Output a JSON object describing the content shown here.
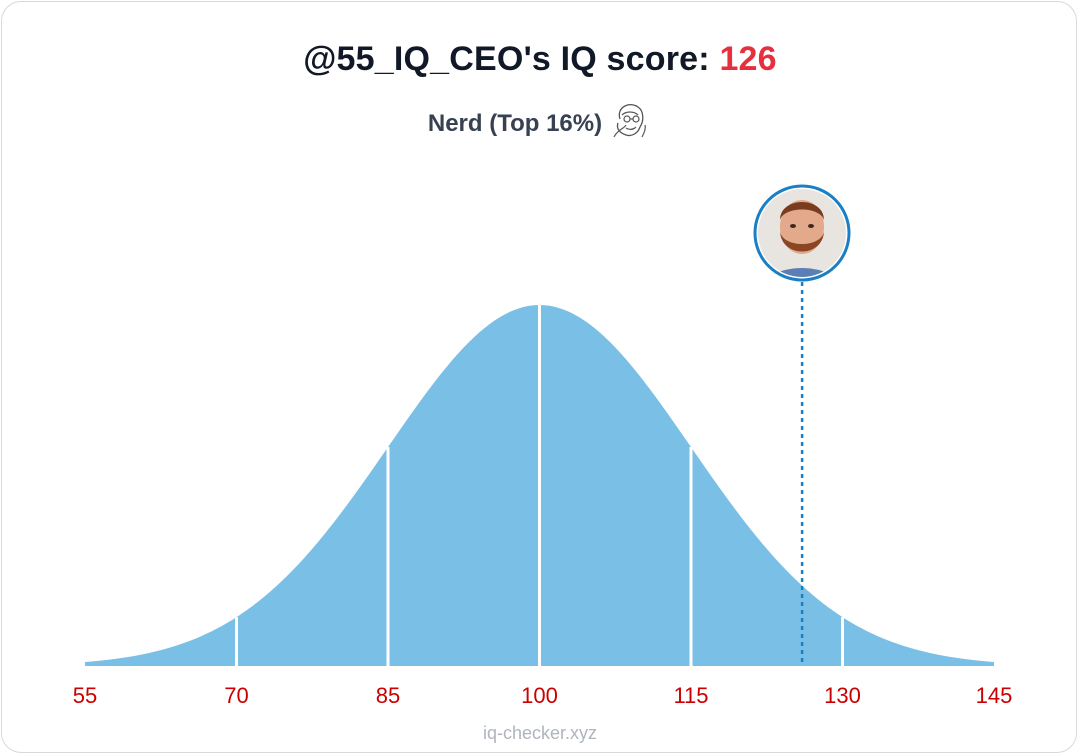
{
  "header": {
    "title_prefix": "@55_IQ_CEO's IQ score:",
    "score": "126",
    "subtitle": "Nerd (Top 16%)",
    "subtitle_icon": "nerd-face-icon"
  },
  "watermark": "iq-checker.xyz",
  "colors": {
    "curve_fill": "#7ac0e6",
    "divider": "#ffffff",
    "marker_line": "#1a7fc4",
    "tick_label": "#cc0000",
    "score": "#e5303d",
    "title": "#111827"
  },
  "chart_data": {
    "type": "area",
    "distribution": "normal",
    "mean": 100,
    "sd": 15,
    "x_range": [
      55,
      145
    ],
    "x_ticks": [
      55,
      70,
      85,
      100,
      115,
      130,
      145
    ],
    "x_tick_labels": [
      "55",
      "70",
      "85",
      "100",
      "115",
      "130",
      "145"
    ],
    "divider_lines_at": [
      70,
      85,
      100,
      115,
      130
    ],
    "marker": {
      "x": 126,
      "style": "dotted",
      "avatar": "profile-photo"
    },
    "grid": false,
    "title": "",
    "xlabel": "",
    "ylabel": ""
  }
}
